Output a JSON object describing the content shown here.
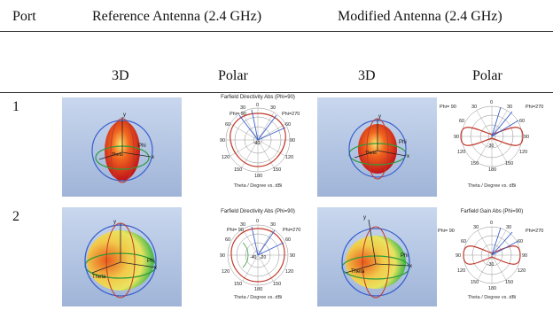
{
  "table": {
    "header_port": "Port",
    "header_reference": "Reference Antenna (2.4 GHz)",
    "header_modified": "Modified Antenna (2.4 GHz)",
    "sub_3d_ref": "3D",
    "sub_polar_ref": "Polar",
    "sub_3d_mod": "3D",
    "sub_polar_mod": "Polar"
  },
  "rows": [
    {
      "port": "1",
      "ref_polar": {
        "title": "Farfield Directivity Abs (Phi=90)",
        "phi_left": "Phi= 90",
        "phi_right": "Phi=270",
        "ticks": [
          "0",
          "30",
          "60",
          "90",
          "120",
          "150",
          "180",
          "30",
          "60",
          "90",
          "120",
          "150"
        ],
        "ring": "-40",
        "caption": "Theta / Degree vs. dBi"
      },
      "mod_polar": {
        "title": "",
        "phi_left": "Phi= 90",
        "phi_right": "Phi=270",
        "ticks": [
          "0",
          "30",
          "60",
          "90",
          "120",
          "150",
          "180",
          "30",
          "60",
          "90",
          "120",
          "150"
        ],
        "ring": "-30",
        "caption": "Theta / Degree vs. dBi"
      },
      "axis_labels": {
        "y": "y",
        "phi": "Phi",
        "theta": "Theta",
        "x": "x"
      }
    },
    {
      "port": "2",
      "ref_polar": {
        "title": "Farfield Directivity Abs (Phi=90)",
        "phi_left": "Phi= 90",
        "phi_right": "Phi=270",
        "ticks": [
          "0",
          "30",
          "60",
          "90",
          "120",
          "150",
          "180",
          "30",
          "60",
          "90",
          "120",
          "150"
        ],
        "ring": "-40",
        "ring2": "-20",
        "caption": "Theta / Degree vs. dBi"
      },
      "mod_polar": {
        "title": "Farfield Gain Abs (Phi=90)",
        "phi_left": "Phi= 90",
        "phi_right": "Phi=270",
        "ticks": [
          "0",
          "30",
          "60",
          "90",
          "120",
          "150",
          "180",
          "30",
          "60",
          "90",
          "120",
          "150"
        ],
        "ring": "-30",
        "caption": "Theta / Degree vs. dBi"
      },
      "axis_labels": {
        "y": "y",
        "phi": "Phi",
        "theta": "Theta",
        "x": "x"
      }
    }
  ],
  "colors": {
    "pattern_red": "#c0392b",
    "pattern_blue": "#3a5fcd",
    "axis_green": "#2e9c3a",
    "ring_gray": "#8a8a8a"
  }
}
